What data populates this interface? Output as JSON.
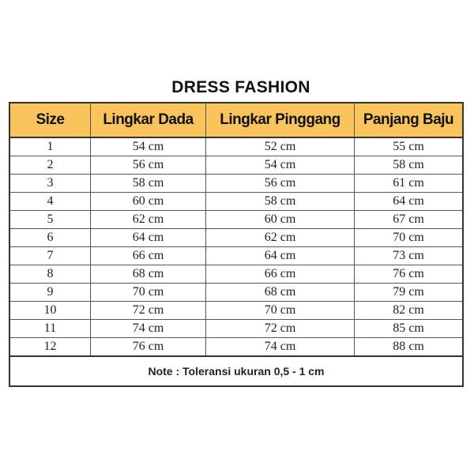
{
  "title": "DRESS FASHION",
  "colors": {
    "header_bg": "#f9c459"
  },
  "headers": [
    "Size",
    "Lingkar Dada",
    "Lingkar Pinggang",
    "Panjang Baju"
  ],
  "rows": [
    [
      "1",
      "54 cm",
      "52 cm",
      "55 cm"
    ],
    [
      "2",
      "56 cm",
      "54 cm",
      "58 cm"
    ],
    [
      "3",
      "58 cm",
      "56 cm",
      "61 cm"
    ],
    [
      "4",
      "60 cm",
      "58 cm",
      "64 cm"
    ],
    [
      "5",
      "62 cm",
      "60 cm",
      "67 cm"
    ],
    [
      "6",
      "64 cm",
      "62 cm",
      "70 cm"
    ],
    [
      "7",
      "66 cm",
      "64 cm",
      "73 cm"
    ],
    [
      "8",
      "68 cm",
      "66 cm",
      "76 cm"
    ],
    [
      "9",
      "70 cm",
      "68 cm",
      "79 cm"
    ],
    [
      "10",
      "72 cm",
      "70 cm",
      "82 cm"
    ],
    [
      "11",
      "74 cm",
      "72 cm",
      "85 cm"
    ],
    [
      "12",
      "76 cm",
      "74 cm",
      "88 cm"
    ]
  ],
  "note": "Note : Toleransi ukuran 0,5 - 1 cm"
}
